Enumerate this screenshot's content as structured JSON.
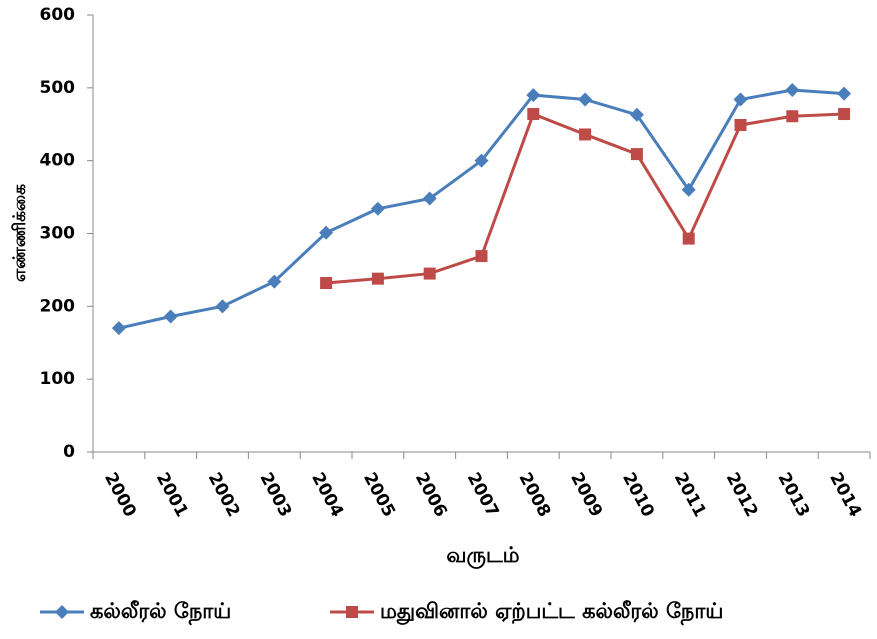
{
  "chart_data": {
    "type": "line",
    "x_label": "வருடம்",
    "y_label": "எண்ணிக்கை",
    "categories": [
      "2000",
      "2001",
      "2002",
      "2003",
      "2004",
      "2005",
      "2006",
      "2007",
      "2008",
      "2009",
      "2010",
      "2011",
      "2012",
      "2013",
      "2014"
    ],
    "series": [
      {
        "name": "கல்லீரல் நோய்",
        "color": "#4a7ebb",
        "marker": "diamond",
        "values": [
          170,
          186,
          200,
          234,
          301,
          334,
          348,
          400,
          490,
          484,
          463,
          360,
          484,
          497,
          492
        ]
      },
      {
        "name": "மதுவினால் ஏற்பட்ட கல்லீரல் நோய்",
        "color": "#be4b48",
        "marker": "square",
        "values": [
          null,
          null,
          null,
          null,
          232,
          238,
          245,
          269,
          464,
          436,
          409,
          293,
          449,
          461,
          464
        ]
      }
    ],
    "ylim": [
      0,
      600
    ],
    "yticks": [
      0,
      100,
      200,
      300,
      400,
      500,
      600
    ],
    "grid": false,
    "legend": "bottom"
  }
}
